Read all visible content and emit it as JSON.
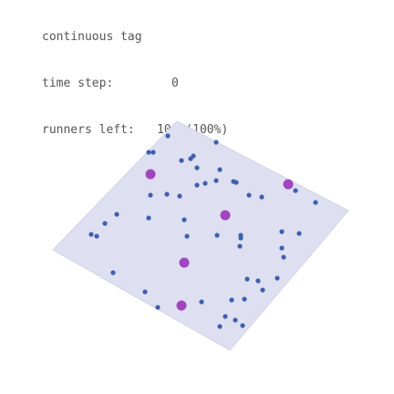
{
  "hud": {
    "title": "continuous tag",
    "time_label": "time step:",
    "time_value": "0",
    "runners_label": "runners left:",
    "runners_value": "100 (100%)"
  },
  "colors": {
    "background": "#ffffff",
    "floor_fill": "#dedff0",
    "runner": "#3f5fae",
    "tagger": "#a145bf",
    "text": "#555555"
  }
}
